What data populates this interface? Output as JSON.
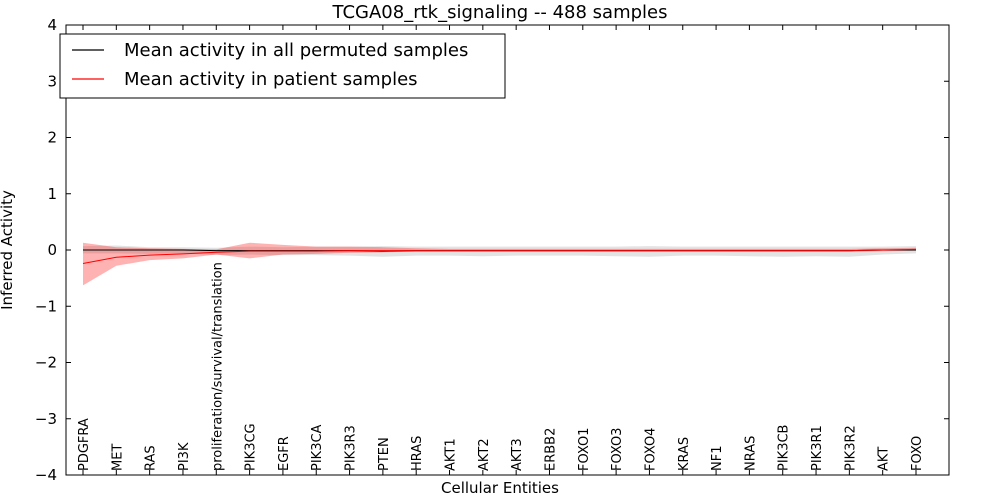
{
  "chart_data": {
    "type": "line",
    "title": "TCGA08_rtk_signaling -- 488 samples",
    "xlabel": "Cellular Entities",
    "ylabel": "Inferred Activity",
    "ylim": [
      -4,
      4
    ],
    "yticks": [
      4,
      3,
      2,
      1,
      0,
      -1,
      -2,
      -3,
      -4
    ],
    "ytick_labels": [
      "4",
      "3",
      "2",
      "1",
      "0",
      "−1",
      "−2",
      "−3",
      "−4"
    ],
    "legend_position": "top-left",
    "categories": [
      "PDGFRA",
      "MET",
      "RAS",
      "PI3K",
      "proliferation/survival/translation",
      "PIK3CG",
      "EGFR",
      "PIK3CA",
      "PIK3R3",
      "PTEN",
      "HRAS",
      "AKT1",
      "AKT2",
      "AKT3",
      "ERBB2",
      "FOXO1",
      "FOXO3",
      "FOXO4",
      "KRAS",
      "NF1",
      "NRAS",
      "PIK3CB",
      "PIK3R1",
      "PIK3R2",
      "AKT",
      "FOXO"
    ],
    "series": [
      {
        "name": "Mean activity in all permuted samples",
        "color": "#000000",
        "values": [
          0.0,
          0.0,
          0.0,
          0.0,
          -0.01,
          -0.01,
          -0.01,
          -0.01,
          -0.01,
          -0.02,
          -0.01,
          -0.01,
          -0.01,
          -0.01,
          -0.01,
          -0.01,
          -0.01,
          -0.01,
          -0.01,
          -0.01,
          -0.01,
          -0.01,
          -0.01,
          -0.01,
          0.0,
          0.0
        ],
        "band_color": "#808080",
        "band_upper": [
          0.07,
          0.08,
          0.05,
          0.05,
          0.04,
          0.06,
          0.05,
          0.06,
          0.06,
          0.07,
          0.06,
          0.06,
          0.06,
          0.06,
          0.06,
          0.06,
          0.06,
          0.07,
          0.06,
          0.06,
          0.06,
          0.06,
          0.06,
          0.06,
          0.06,
          0.07
        ],
        "band_lower": [
          -0.06,
          -0.06,
          -0.07,
          -0.06,
          -0.09,
          -0.08,
          -0.09,
          -0.09,
          -0.1,
          -0.12,
          -0.1,
          -0.1,
          -0.11,
          -0.1,
          -0.1,
          -0.1,
          -0.11,
          -0.12,
          -0.1,
          -0.1,
          -0.11,
          -0.12,
          -0.11,
          -0.12,
          -0.08,
          -0.06
        ]
      },
      {
        "name": "Mean activity in patient samples",
        "color": "#ff0000",
        "values": [
          -0.24,
          -0.13,
          -0.09,
          -0.07,
          -0.04,
          -0.02,
          -0.02,
          -0.02,
          -0.01,
          -0.01,
          -0.01,
          -0.01,
          -0.01,
          -0.01,
          -0.01,
          -0.01,
          -0.01,
          -0.01,
          -0.01,
          -0.01,
          -0.01,
          -0.01,
          -0.01,
          -0.01,
          0.0,
          0.01
        ],
        "band_color": "#ff0000",
        "band_upper": [
          0.13,
          0.05,
          0.03,
          0.02,
          0.01,
          0.13,
          0.09,
          0.06,
          0.06,
          0.05,
          0.03,
          0.02,
          0.02,
          0.02,
          0.02,
          0.02,
          0.02,
          0.02,
          0.02,
          0.02,
          0.02,
          0.02,
          0.02,
          0.02,
          0.03,
          0.04
        ],
        "band_lower": [
          -0.63,
          -0.28,
          -0.18,
          -0.15,
          -0.08,
          -0.15,
          -0.08,
          -0.07,
          -0.05,
          -0.04,
          -0.03,
          -0.03,
          -0.03,
          -0.03,
          -0.03,
          -0.03,
          -0.03,
          -0.03,
          -0.03,
          -0.03,
          -0.03,
          -0.03,
          -0.03,
          -0.03,
          -0.02,
          -0.01
        ]
      }
    ]
  }
}
